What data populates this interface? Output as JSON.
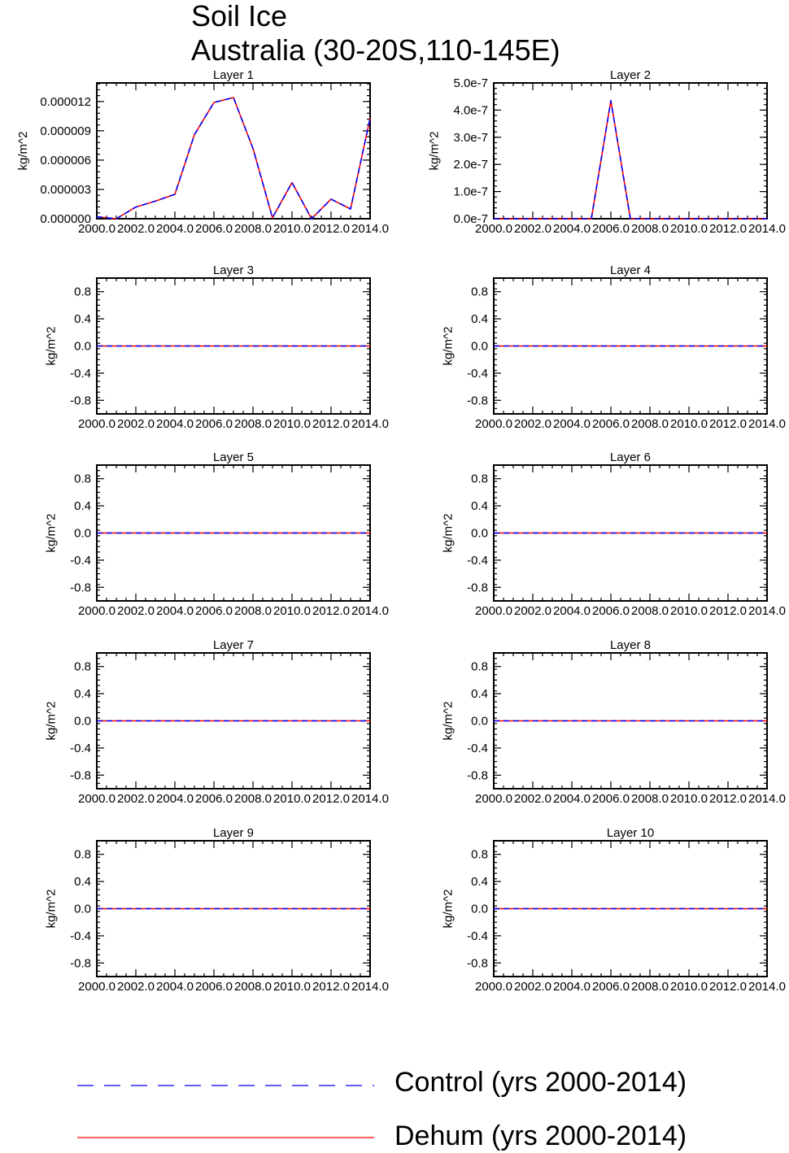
{
  "header": {
    "title_line1": "Soil Ice",
    "title_line2": "Australia (30-20S,110-145E)"
  },
  "colors": {
    "control": "#0000ff",
    "dehum": "#ff0000"
  },
  "legend": [
    {
      "label": "Control (yrs 2000-2014)",
      "style": "dashed",
      "color": "#0000ff"
    },
    {
      "label": "Dehum (yrs 2000-2014)",
      "style": "solid",
      "color": "#ff0000"
    }
  ],
  "chart_data": [
    {
      "type": "line",
      "title": "Layer 1",
      "ylabel": "kg/m^2",
      "x": [
        2000,
        2001,
        2002,
        2003,
        2004,
        2005,
        2006,
        2007,
        2008,
        2009,
        2010,
        2011,
        2012,
        2013,
        2014
      ],
      "xlim": [
        2000,
        2014
      ],
      "xticks": [
        "2000.0",
        "2002.0",
        "2004.0",
        "2006.0",
        "2008.0",
        "2010.0",
        "2012.0",
        "2014.0"
      ],
      "ylim": [
        0,
        1.39e-05
      ],
      "yticks": [
        0,
        3e-06,
        6e-06,
        9e-06,
        1.2e-05
      ],
      "ytick_labels": [
        "0.000000",
        "0.000003",
        "0.000006",
        "0.000009",
        "0.000012"
      ],
      "series": [
        {
          "name": "Control (yrs 2000-2014)",
          "values": [
            2e-07,
            0,
            1.2e-06,
            1.8e-06,
            2.5e-06,
            8.6e-06,
            1.19e-05,
            1.24e-05,
            7.2e-06,
            1e-07,
            3.7e-06,
            0,
            2e-06,
            1e-06,
            1.03e-05
          ]
        },
        {
          "name": "Dehum (yrs 2000-2014)",
          "values": [
            2e-07,
            0,
            1.2e-06,
            1.8e-06,
            2.5e-06,
            8.6e-06,
            1.19e-05,
            1.24e-05,
            7.2e-06,
            1e-07,
            3.7e-06,
            0,
            2e-06,
            1e-06,
            1.03e-05
          ]
        }
      ]
    },
    {
      "type": "line",
      "title": "Layer 2",
      "ylabel": "kg/m^2",
      "x": [
        2000,
        2001,
        2002,
        2003,
        2004,
        2005,
        2006,
        2007,
        2008,
        2009,
        2010,
        2011,
        2012,
        2013,
        2014
      ],
      "xlim": [
        2000,
        2014
      ],
      "xticks": [
        "2000.0",
        "2002.0",
        "2004.0",
        "2006.0",
        "2008.0",
        "2010.0",
        "2012.0",
        "2014.0"
      ],
      "ylim": [
        0,
        5e-07
      ],
      "yticks": [
        0,
        1e-07,
        2e-07,
        3e-07,
        4e-07,
        5e-07
      ],
      "ytick_labels": [
        "0.0e-7",
        "1.0e-7",
        "2.0e-7",
        "3.0e-7",
        "4.0e-7",
        "5.0e-7"
      ],
      "series": [
        {
          "name": "Control (yrs 2000-2014)",
          "values": [
            0,
            0,
            0,
            0,
            0,
            0,
            4.35e-07,
            0,
            0,
            0,
            0,
            0,
            0,
            0,
            0
          ]
        },
        {
          "name": "Dehum (yrs 2000-2014)",
          "values": [
            0,
            0,
            0,
            0,
            0,
            0,
            4.35e-07,
            0,
            0,
            0,
            0,
            0,
            0,
            0,
            0
          ]
        }
      ]
    },
    {
      "type": "line",
      "title": "Layer 3",
      "ylabel": "kg/m^2",
      "x": [
        2000,
        2014
      ],
      "xlim": [
        2000,
        2014
      ],
      "xticks": [
        "2000.0",
        "2002.0",
        "2004.0",
        "2006.0",
        "2008.0",
        "2010.0",
        "2012.0",
        "2014.0"
      ],
      "ylim": [
        -1,
        1
      ],
      "yticks": [
        -0.8,
        -0.4,
        0,
        0.4,
        0.8
      ],
      "ytick_labels": [
        "-0.8",
        "-0.4",
        "0.0",
        "0.4",
        "0.8"
      ],
      "series": [
        {
          "name": "Control (yrs 2000-2014)",
          "values": [
            0,
            0
          ]
        },
        {
          "name": "Dehum (yrs 2000-2014)",
          "values": [
            0,
            0
          ]
        }
      ]
    },
    {
      "type": "line",
      "title": "Layer 4",
      "ylabel": "kg/m^2",
      "x": [
        2000,
        2014
      ],
      "xlim": [
        2000,
        2014
      ],
      "xticks": [
        "2000.0",
        "2002.0",
        "2004.0",
        "2006.0",
        "2008.0",
        "2010.0",
        "2012.0",
        "2014.0"
      ],
      "ylim": [
        -1,
        1
      ],
      "yticks": [
        -0.8,
        -0.4,
        0,
        0.4,
        0.8
      ],
      "ytick_labels": [
        "-0.8",
        "-0.4",
        "0.0",
        "0.4",
        "0.8"
      ],
      "series": [
        {
          "name": "Control (yrs 2000-2014)",
          "values": [
            0,
            0
          ]
        },
        {
          "name": "Dehum (yrs 2000-2014)",
          "values": [
            0,
            0
          ]
        }
      ]
    },
    {
      "type": "line",
      "title": "Layer 5",
      "ylabel": "kg/m^2",
      "x": [
        2000,
        2014
      ],
      "xlim": [
        2000,
        2014
      ],
      "xticks": [
        "2000.0",
        "2002.0",
        "2004.0",
        "2006.0",
        "2008.0",
        "2010.0",
        "2012.0",
        "2014.0"
      ],
      "ylim": [
        -1,
        1
      ],
      "yticks": [
        -0.8,
        -0.4,
        0,
        0.4,
        0.8
      ],
      "ytick_labels": [
        "-0.8",
        "-0.4",
        "0.0",
        "0.4",
        "0.8"
      ],
      "series": [
        {
          "name": "Control (yrs 2000-2014)",
          "values": [
            0,
            0
          ]
        },
        {
          "name": "Dehum (yrs 2000-2014)",
          "values": [
            0,
            0
          ]
        }
      ]
    },
    {
      "type": "line",
      "title": "Layer 6",
      "ylabel": "kg/m^2",
      "x": [
        2000,
        2014
      ],
      "xlim": [
        2000,
        2014
      ],
      "xticks": [
        "2000.0",
        "2002.0",
        "2004.0",
        "2006.0",
        "2008.0",
        "2010.0",
        "2012.0",
        "2014.0"
      ],
      "ylim": [
        -1,
        1
      ],
      "yticks": [
        -0.8,
        -0.4,
        0,
        0.4,
        0.8
      ],
      "ytick_labels": [
        "-0.8",
        "-0.4",
        "0.0",
        "0.4",
        "0.8"
      ],
      "series": [
        {
          "name": "Control (yrs 2000-2014)",
          "values": [
            0,
            0
          ]
        },
        {
          "name": "Dehum (yrs 2000-2014)",
          "values": [
            0,
            0
          ]
        }
      ]
    },
    {
      "type": "line",
      "title": "Layer 7",
      "ylabel": "kg/m^2",
      "x": [
        2000,
        2014
      ],
      "xlim": [
        2000,
        2014
      ],
      "xticks": [
        "2000.0",
        "2002.0",
        "2004.0",
        "2006.0",
        "2008.0",
        "2010.0",
        "2012.0",
        "2014.0"
      ],
      "ylim": [
        -1,
        1
      ],
      "yticks": [
        -0.8,
        -0.4,
        0,
        0.4,
        0.8
      ],
      "ytick_labels": [
        "-0.8",
        "-0.4",
        "0.0",
        "0.4",
        "0.8"
      ],
      "series": [
        {
          "name": "Control (yrs 2000-2014)",
          "values": [
            0,
            0
          ]
        },
        {
          "name": "Dehum (yrs 2000-2014)",
          "values": [
            0,
            0
          ]
        }
      ]
    },
    {
      "type": "line",
      "title": "Layer 8",
      "ylabel": "kg/m^2",
      "x": [
        2000,
        2014
      ],
      "xlim": [
        2000,
        2014
      ],
      "xticks": [
        "2000.0",
        "2002.0",
        "2004.0",
        "2006.0",
        "2008.0",
        "2010.0",
        "2012.0",
        "2014.0"
      ],
      "ylim": [
        -1,
        1
      ],
      "yticks": [
        -0.8,
        -0.4,
        0,
        0.4,
        0.8
      ],
      "ytick_labels": [
        "-0.8",
        "-0.4",
        "0.0",
        "0.4",
        "0.8"
      ],
      "series": [
        {
          "name": "Control (yrs 2000-2014)",
          "values": [
            0,
            0
          ]
        },
        {
          "name": "Dehum (yrs 2000-2014)",
          "values": [
            0,
            0
          ]
        }
      ]
    },
    {
      "type": "line",
      "title": "Layer 9",
      "ylabel": "kg/m^2",
      "x": [
        2000,
        2014
      ],
      "xlim": [
        2000,
        2014
      ],
      "xticks": [
        "2000.0",
        "2002.0",
        "2004.0",
        "2006.0",
        "2008.0",
        "2010.0",
        "2012.0",
        "2014.0"
      ],
      "ylim": [
        -1,
        1
      ],
      "yticks": [
        -0.8,
        -0.4,
        0,
        0.4,
        0.8
      ],
      "ytick_labels": [
        "-0.8",
        "-0.4",
        "0.0",
        "0.4",
        "0.8"
      ],
      "series": [
        {
          "name": "Control (yrs 2000-2014)",
          "values": [
            0,
            0
          ]
        },
        {
          "name": "Dehum (yrs 2000-2014)",
          "values": [
            0,
            0
          ]
        }
      ]
    },
    {
      "type": "line",
      "title": "Layer 10",
      "ylabel": "kg/m^2",
      "x": [
        2000,
        2014
      ],
      "xlim": [
        2000,
        2014
      ],
      "xticks": [
        "2000.0",
        "2002.0",
        "2004.0",
        "2006.0",
        "2008.0",
        "2010.0",
        "2012.0",
        "2014.0"
      ],
      "ylim": [
        -1,
        1
      ],
      "yticks": [
        -0.8,
        -0.4,
        0,
        0.4,
        0.8
      ],
      "ytick_labels": [
        "-0.8",
        "-0.4",
        "0.0",
        "0.4",
        "0.8"
      ],
      "series": [
        {
          "name": "Control (yrs 2000-2014)",
          "values": [
            0,
            0
          ]
        },
        {
          "name": "Dehum (yrs 2000-2014)",
          "values": [
            0,
            0
          ]
        }
      ]
    }
  ]
}
